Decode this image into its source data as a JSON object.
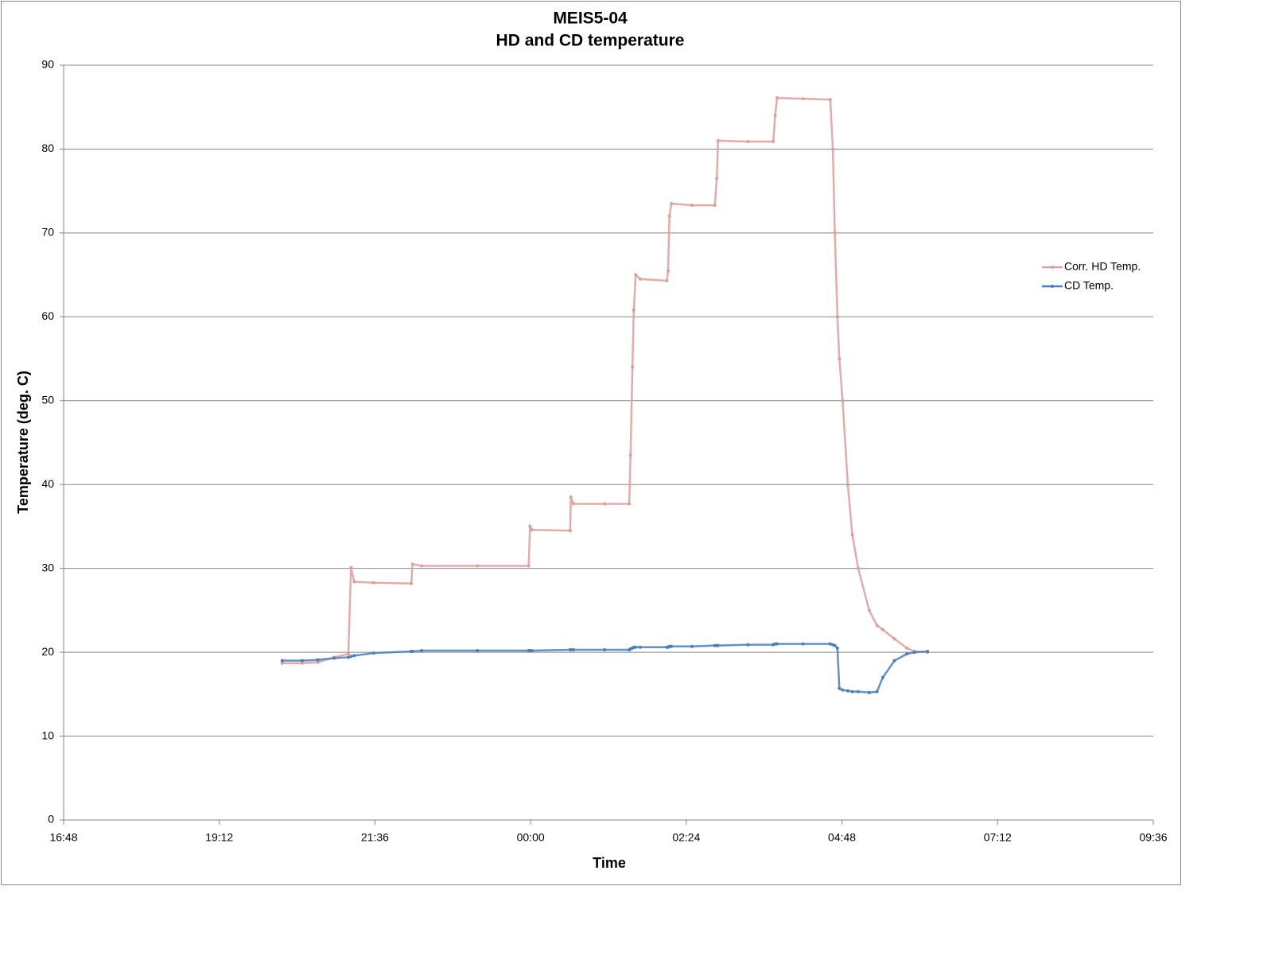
{
  "chart_data": {
    "type": "line",
    "title": "MEIS5-04",
    "subtitle": "HD and CD temperature",
    "x_label": "Time",
    "y_label": "Temperature (deg. C)",
    "x": [
      20.17,
      20.48,
      20.72,
      20.97,
      21.19,
      21.23,
      21.28,
      21.58,
      22.16,
      22.18,
      22.32,
      23.18,
      23.97,
      23.99,
      24.02,
      24.61,
      24.62,
      24.66,
      25.14,
      25.52,
      25.54,
      25.57,
      25.59,
      25.62,
      25.69,
      26.1,
      26.12,
      26.14,
      26.17,
      26.49,
      26.84,
      26.87,
      26.89,
      27.35,
      27.74,
      27.77,
      27.8,
      28.2,
      28.62,
      28.66,
      28.69,
      28.73,
      28.76,
      28.81,
      28.89,
      28.96,
      29.05,
      29.22,
      29.34,
      29.43,
      29.61,
      29.8,
      29.92,
      30.12
    ],
    "series": [
      {
        "name": "Corr. HD Temp.",
        "color": "#dc9d9b",
        "values": [
          18.7,
          18.7,
          18.8,
          19.4,
          19.8,
          30.1,
          28.4,
          28.3,
          28.2,
          30.5,
          30.3,
          30.3,
          30.3,
          35.0,
          34.6,
          34.5,
          38.5,
          37.7,
          37.7,
          37.7,
          43.5,
          54.0,
          60.8,
          65.0,
          64.5,
          64.3,
          65.5,
          72.0,
          73.5,
          73.3,
          73.3,
          76.5,
          81.0,
          80.9,
          80.9,
          84.0,
          86.1,
          86.0,
          85.9,
          80.0,
          70.0,
          60.0,
          55.0,
          50.0,
          40.0,
          34.0,
          30.0,
          25.0,
          23.2,
          22.7,
          21.6,
          20.5,
          20.1,
          20.0
        ]
      },
      {
        "name": "CD Temp.",
        "color": "#4a7ebb",
        "values": [
          19.0,
          19.0,
          19.1,
          19.3,
          19.4,
          19.5,
          19.6,
          19.9,
          20.1,
          20.1,
          20.2,
          20.2,
          20.2,
          20.2,
          20.2,
          20.3,
          20.3,
          20.3,
          20.3,
          20.3,
          20.4,
          20.5,
          20.6,
          20.6,
          20.6,
          20.6,
          20.6,
          20.7,
          20.7,
          20.7,
          20.8,
          20.8,
          20.8,
          20.9,
          20.9,
          21.0,
          21.0,
          21.0,
          21.0,
          20.9,
          20.8,
          20.5,
          15.7,
          15.5,
          15.4,
          15.3,
          15.3,
          15.2,
          15.3,
          17.0,
          19.0,
          19.8,
          20.0,
          20.1
        ]
      }
    ],
    "xlim": [
      16.8,
      33.6
    ],
    "xticks": [
      {
        "value": 16.8,
        "label": "16:48"
      },
      {
        "value": 19.2,
        "label": "19:12"
      },
      {
        "value": 21.6,
        "label": "21:36"
      },
      {
        "value": 24,
        "label": "00:00"
      },
      {
        "value": 26.4,
        "label": "02:24"
      },
      {
        "value": 28.8,
        "label": "04:48"
      },
      {
        "value": 31.2,
        "label": "07:12"
      },
      {
        "value": 33.6,
        "label": "09:36"
      }
    ],
    "ylim": [
      0,
      90
    ],
    "yticks": [
      0,
      10,
      20,
      30,
      40,
      50,
      60,
      70,
      80,
      90
    ],
    "grid": true,
    "legend": "right"
  }
}
